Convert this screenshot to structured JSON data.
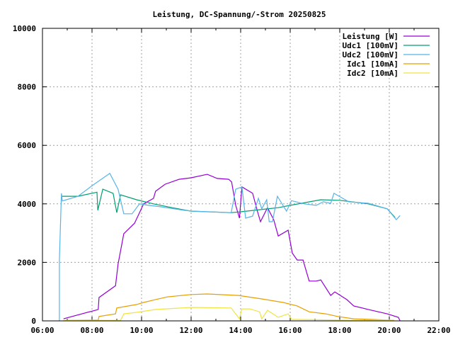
{
  "chart_data": {
    "type": "line",
    "title": "Leistung, DC-Spannung/-Strom 20250825",
    "xlabel": "",
    "ylabel": "",
    "xlim": [
      "06:00",
      "22:00"
    ],
    "ylim": [
      0,
      10000
    ],
    "grid": true,
    "legend_position": "top-right",
    "x_ticks": [
      "06:00",
      "08:00",
      "10:00",
      "12:00",
      "14:00",
      "16:00",
      "18:00",
      "20:00",
      "22:00"
    ],
    "y_ticks": [
      0,
      2000,
      4000,
      6000,
      8000,
      10000
    ],
    "series": [
      {
        "name": "Leistung [W]",
        "color": "#9400d3",
        "points": [
          [
            "06:51",
            70
          ],
          [
            "08:15",
            390
          ],
          [
            "08:17",
            800
          ],
          [
            "08:57",
            1200
          ],
          [
            "09:03",
            1940
          ],
          [
            "09:17",
            2980
          ],
          [
            "09:43",
            3340
          ],
          [
            "09:55",
            3700
          ],
          [
            "10:05",
            4000
          ],
          [
            "10:29",
            4190
          ],
          [
            "10:34",
            4430
          ],
          [
            "10:57",
            4670
          ],
          [
            "11:31",
            4840
          ],
          [
            "12:00",
            4890
          ],
          [
            "12:39",
            5010
          ],
          [
            "13:03",
            4870
          ],
          [
            "13:31",
            4840
          ],
          [
            "13:38",
            4750
          ],
          [
            "13:48",
            3950
          ],
          [
            "13:57",
            3510
          ],
          [
            "14:03",
            4580
          ],
          [
            "14:29",
            4360
          ],
          [
            "14:40",
            3780
          ],
          [
            "14:48",
            3390
          ],
          [
            "15:05",
            3870
          ],
          [
            "15:20",
            3460
          ],
          [
            "15:31",
            2900
          ],
          [
            "15:55",
            3100
          ],
          [
            "16:05",
            2320
          ],
          [
            "16:17",
            2080
          ],
          [
            "16:31",
            2080
          ],
          [
            "16:46",
            1360
          ],
          [
            "17:03",
            1360
          ],
          [
            "17:14",
            1400
          ],
          [
            "17:38",
            870
          ],
          [
            "17:48",
            990
          ],
          [
            "18:17",
            730
          ],
          [
            "18:34",
            510
          ],
          [
            "19:09",
            390
          ],
          [
            "19:55",
            240
          ],
          [
            "20:22",
            120
          ],
          [
            "20:26",
            0
          ]
        ]
      },
      {
        "name": "Udc1 [100mV]",
        "color": "#009e73",
        "points": [
          [
            "06:46",
            4260
          ],
          [
            "07:26",
            4260
          ],
          [
            "08:12",
            4400
          ],
          [
            "08:14",
            3780
          ],
          [
            "08:26",
            4500
          ],
          [
            "08:51",
            4360
          ],
          [
            "09:00",
            3700
          ],
          [
            "09:09",
            4310
          ],
          [
            "09:48",
            4140
          ],
          [
            "10:29",
            4000
          ],
          [
            "11:14",
            3870
          ],
          [
            "12:00",
            3750
          ],
          [
            "13:37",
            3700
          ],
          [
            "14:00",
            3730
          ],
          [
            "15:31",
            3870
          ],
          [
            "16:00",
            3950
          ],
          [
            "17:14",
            4140
          ],
          [
            "18:00",
            4120
          ],
          [
            "19:09",
            4000
          ],
          [
            "19:55",
            3830
          ],
          [
            "20:14",
            3530
          ]
        ]
      },
      {
        "name": "Udc2 [100mV]",
        "color": "#56b4e9",
        "points": [
          [
            "06:41",
            0
          ],
          [
            "06:41",
            2080
          ],
          [
            "06:46",
            4360
          ],
          [
            "06:48",
            4100
          ],
          [
            "07:26",
            4260
          ],
          [
            "08:00",
            4620
          ],
          [
            "08:43",
            5040
          ],
          [
            "09:03",
            4500
          ],
          [
            "09:17",
            3660
          ],
          [
            "09:37",
            3660
          ],
          [
            "09:55",
            4000
          ],
          [
            "10:17",
            3950
          ],
          [
            "10:46",
            3900
          ],
          [
            "11:43",
            3780
          ],
          [
            "12:05",
            3750
          ],
          [
            "13:37",
            3700
          ],
          [
            "13:48",
            4500
          ],
          [
            "14:03",
            4580
          ],
          [
            "14:12",
            3510
          ],
          [
            "14:29",
            3580
          ],
          [
            "14:43",
            4190
          ],
          [
            "14:51",
            3830
          ],
          [
            "15:03",
            4140
          ],
          [
            "15:09",
            3390
          ],
          [
            "15:17",
            3390
          ],
          [
            "15:29",
            4260
          ],
          [
            "15:51",
            3750
          ],
          [
            "16:03",
            4110
          ],
          [
            "16:34",
            4000
          ],
          [
            "17:03",
            3950
          ],
          [
            "17:20",
            4070
          ],
          [
            "17:38",
            4020
          ],
          [
            "17:46",
            4360
          ],
          [
            "18:22",
            4070
          ],
          [
            "19:09",
            4020
          ],
          [
            "19:55",
            3830
          ],
          [
            "20:17",
            3460
          ],
          [
            "20:26",
            3600
          ]
        ]
      },
      {
        "name": "Idc1 [10mA]",
        "color": "#e69f00",
        "points": [
          [
            "06:51",
            20
          ],
          [
            "08:15",
            30
          ],
          [
            "08:17",
            150
          ],
          [
            "08:57",
            240
          ],
          [
            "09:00",
            440
          ],
          [
            "09:48",
            560
          ],
          [
            "10:05",
            630
          ],
          [
            "10:34",
            730
          ],
          [
            "11:03",
            820
          ],
          [
            "12:00",
            900
          ],
          [
            "12:39",
            920
          ],
          [
            "13:55",
            870
          ],
          [
            "14:51",
            750
          ],
          [
            "15:43",
            630
          ],
          [
            "16:17",
            510
          ],
          [
            "16:46",
            310
          ],
          [
            "17:26",
            240
          ],
          [
            "17:55",
            150
          ],
          [
            "18:34",
            70
          ],
          [
            "19:14",
            50
          ],
          [
            "20:12",
            20
          ]
        ]
      },
      {
        "name": "Idc2 [10mA]",
        "color": "#f0e442",
        "points": [
          [
            "06:51",
            20
          ],
          [
            "09:09",
            20
          ],
          [
            "09:17",
            240
          ],
          [
            "09:48",
            290
          ],
          [
            "10:34",
            390
          ],
          [
            "12:00",
            460
          ],
          [
            "13:37",
            440
          ],
          [
            "13:57",
            70
          ],
          [
            "14:03",
            410
          ],
          [
            "14:22",
            410
          ],
          [
            "14:46",
            310
          ],
          [
            "14:51",
            70
          ],
          [
            "15:05",
            360
          ],
          [
            "15:31",
            120
          ],
          [
            "15:55",
            240
          ],
          [
            "16:03",
            50
          ],
          [
            "18:34",
            20
          ],
          [
            "20:12",
            30
          ]
        ]
      }
    ]
  }
}
